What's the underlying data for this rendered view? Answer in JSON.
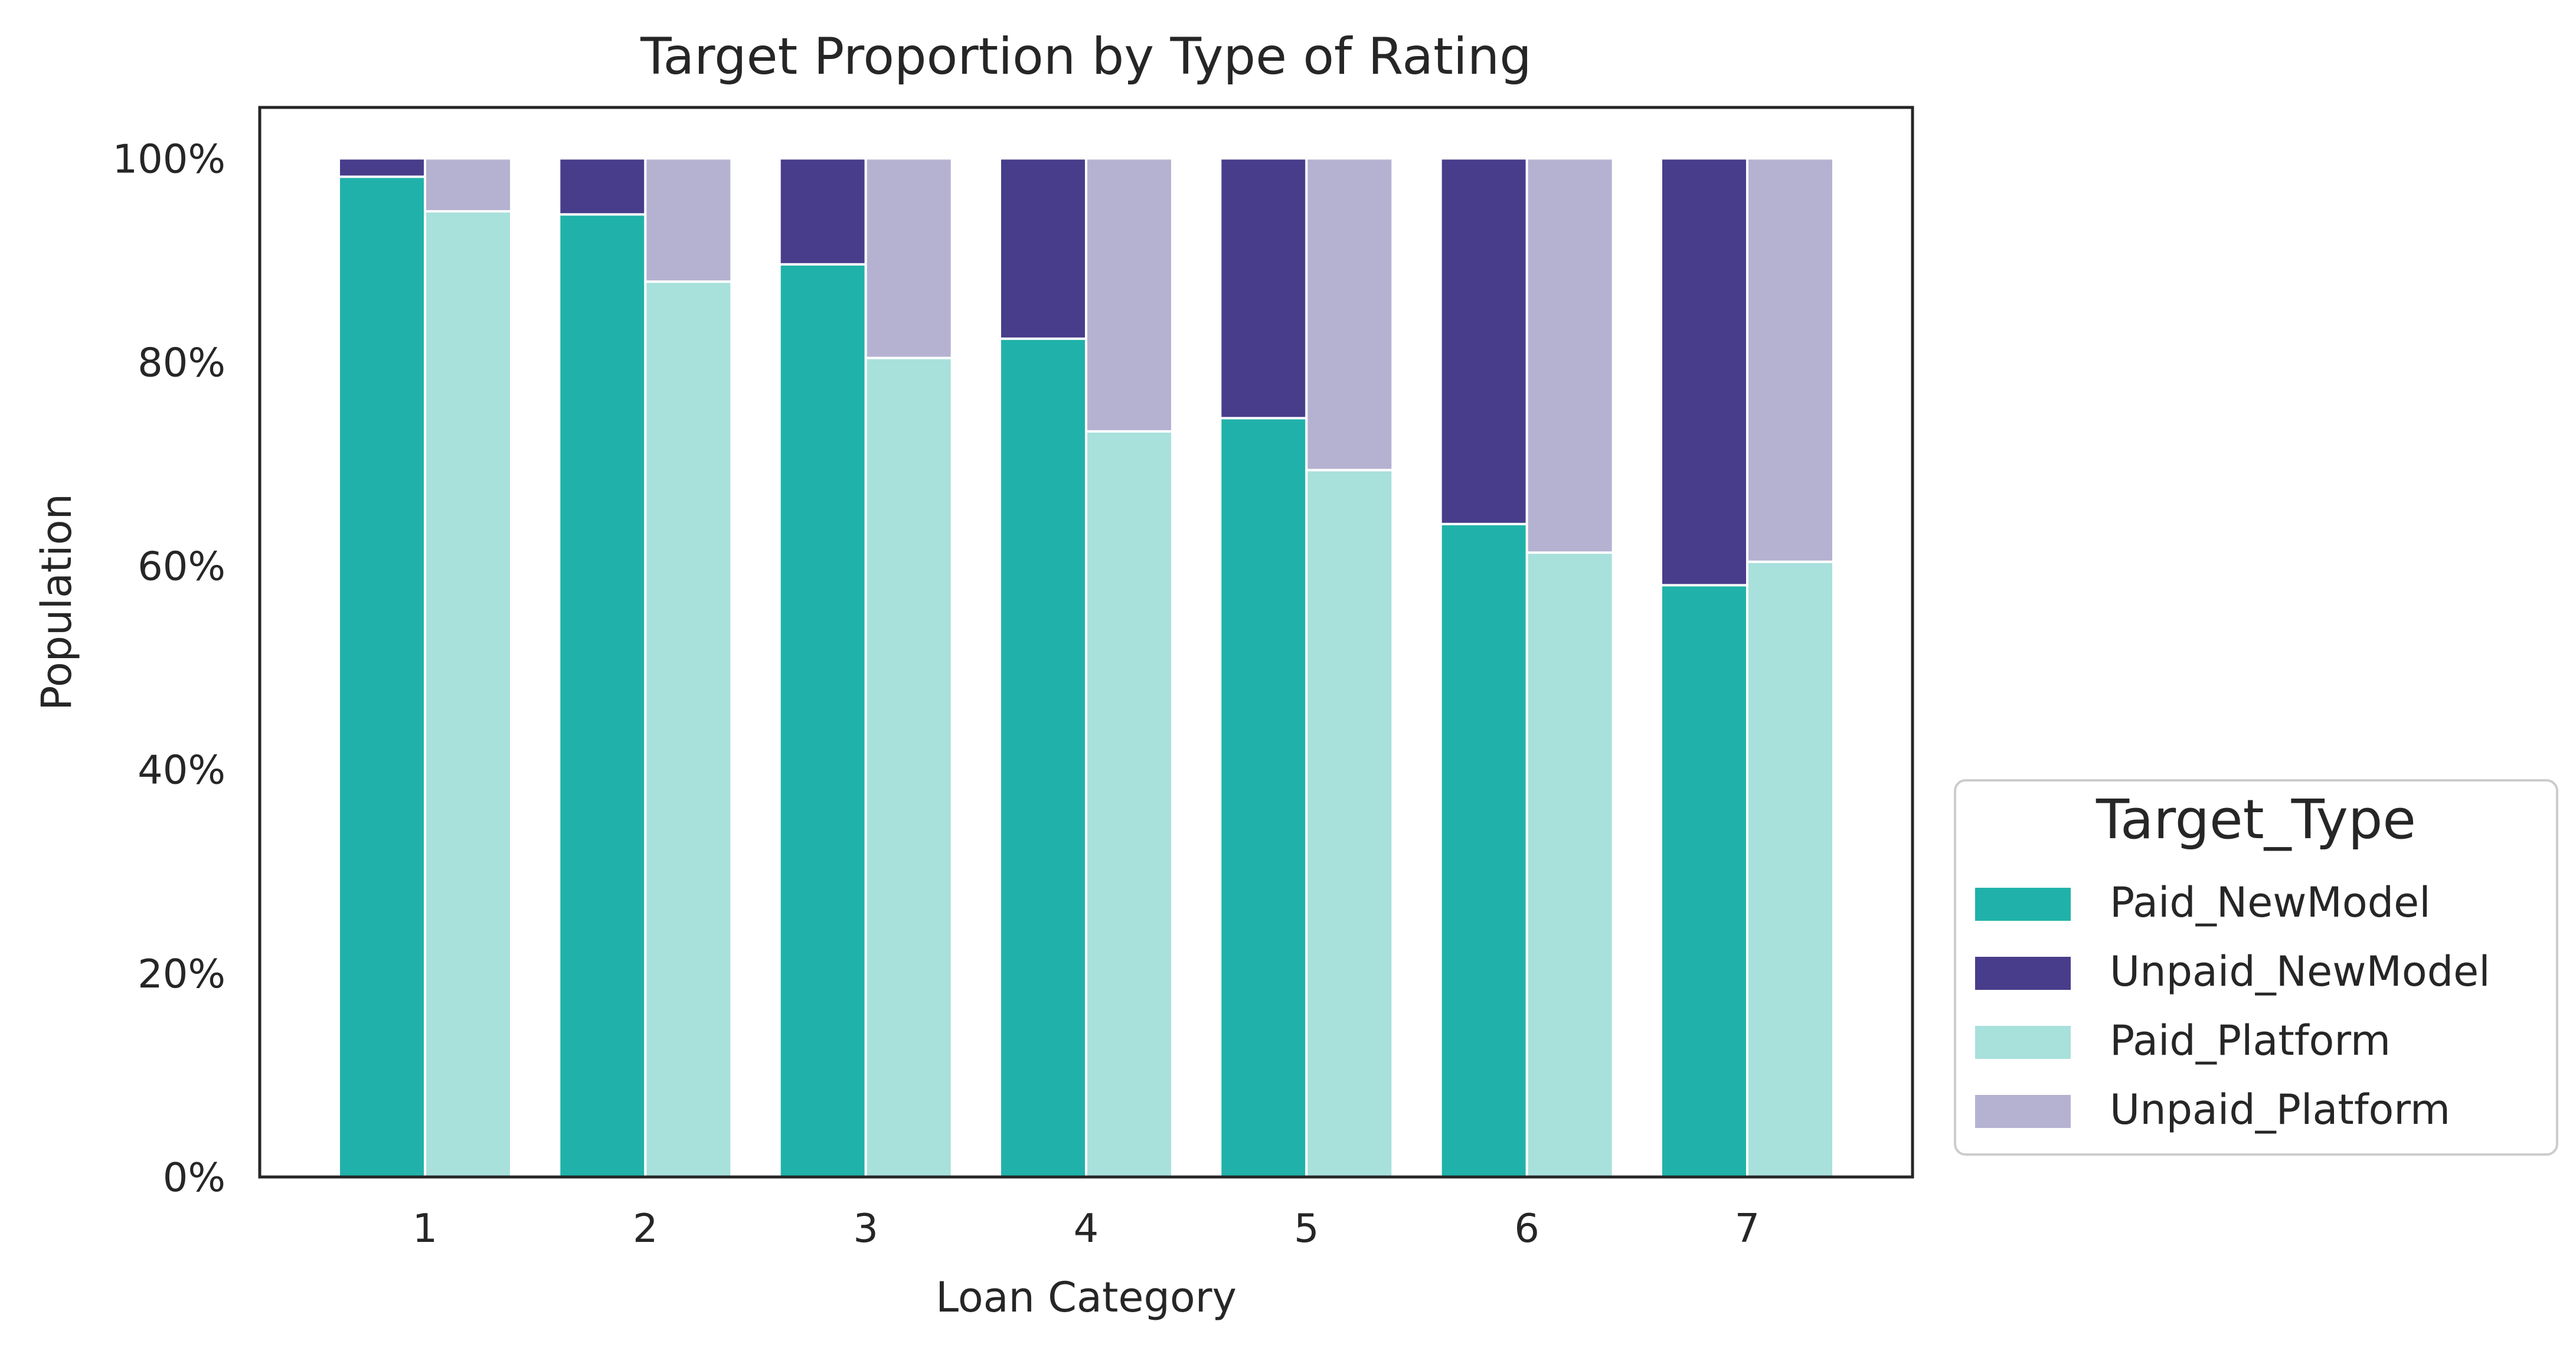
{
  "chart_data": {
    "type": "bar",
    "stacked": true,
    "title": "Target Proportion by Type of Rating",
    "xlabel": "Loan Category",
    "ylabel": "Population",
    "categories": [
      "1",
      "2",
      "3",
      "4",
      "5",
      "6",
      "7"
    ],
    "ylim": [
      0,
      105
    ],
    "yticks": [
      "0%",
      "20%",
      "40%",
      "60%",
      "80%",
      "100%"
    ],
    "ytick_values": [
      0,
      20,
      40,
      60,
      80,
      100
    ],
    "grid": false,
    "legend": {
      "title": "Target_Type",
      "placement": "outside-lower-right"
    },
    "groups": [
      {
        "position": "left",
        "series": [
          {
            "name": "Paid_NewModel",
            "color": "#20b2aa",
            "values": [
              98.2,
              94.5,
              89.6,
              82.3,
              74.5,
              64.1,
              58.1
            ]
          },
          {
            "name": "Unpaid_NewModel",
            "color": "#483d8b",
            "values": [
              1.8,
              5.5,
              10.4,
              17.7,
              25.5,
              35.9,
              41.9
            ]
          }
        ]
      },
      {
        "position": "right",
        "series": [
          {
            "name": "Paid_Platform",
            "color": "#a8e0dc",
            "values": [
              94.8,
              87.9,
              80.4,
              73.2,
              69.4,
              61.3,
              60.4
            ]
          },
          {
            "name": "Unpaid_Platform",
            "color": "#b5b2d1",
            "values": [
              5.2,
              12.1,
              19.6,
              26.8,
              30.6,
              38.7,
              39.6
            ]
          }
        ]
      }
    ]
  }
}
